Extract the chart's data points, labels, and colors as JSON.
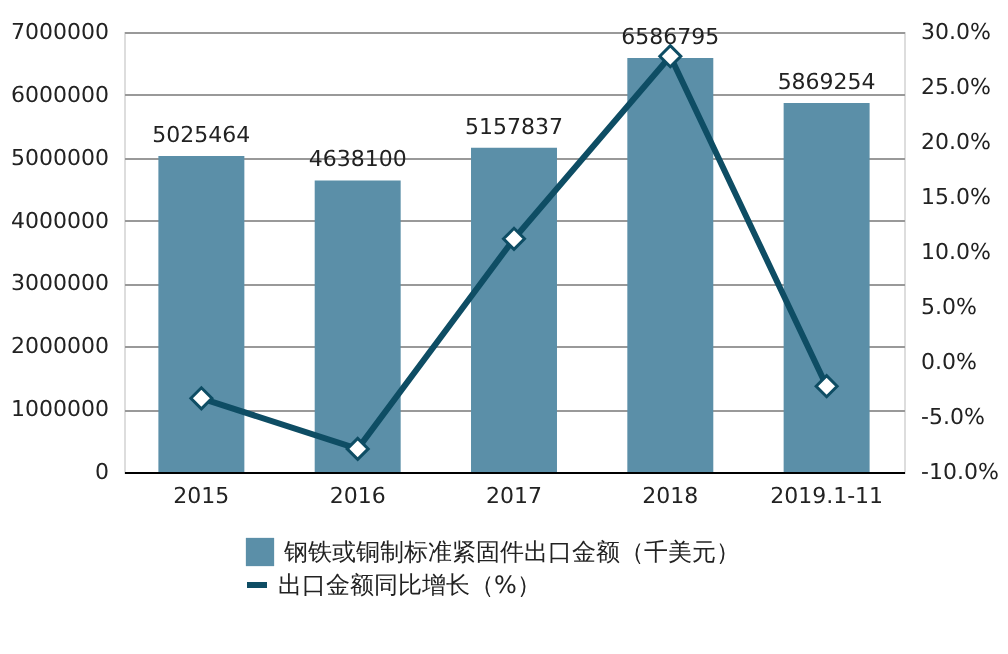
{
  "chart_data": {
    "type": "bar",
    "categories": [
      "2015",
      "2016",
      "2017",
      "2018",
      "2019.1-11"
    ],
    "series": [
      {
        "name": "钢铁或铜制标准紧固件出口金额（千美元）",
        "color": "#5b8fa8",
        "values": [
          5025464,
          4638100,
          5157837,
          6586795,
          5869254
        ],
        "value_labels": [
          "5025464",
          "4638100",
          "5157837",
          "6586795",
          "5869254"
        ]
      },
      {
        "name": "出口金额同比增长（%）",
        "type": "line",
        "axis": "y2",
        "color": "#0e4d64",
        "values": [
          -3.3,
          -7.9,
          11.2,
          27.8,
          -2.2
        ],
        "marker": "diamond"
      }
    ],
    "ylim": [
      0,
      7000000
    ],
    "yticks": [
      0,
      1000000,
      2000000,
      3000000,
      4000000,
      5000000,
      6000000,
      7000000
    ],
    "y2lim": [
      -10,
      30
    ],
    "y2ticks": [
      {
        "value": -10,
        "label": "-10.0%"
      },
      {
        "value": -5,
        "label": "-5.0%"
      },
      {
        "value": 0,
        "label": "0.0%"
      },
      {
        "value": 5,
        "label": "5.0%"
      },
      {
        "value": 10,
        "label": "10.0%"
      },
      {
        "value": 15,
        "label": "15.0%"
      },
      {
        "value": 20,
        "label": "20.0%"
      },
      {
        "value": 25,
        "label": "25.0%"
      },
      {
        "value": 30,
        "label": "30.0%"
      }
    ],
    "grid": "y",
    "legend": "bottom"
  }
}
